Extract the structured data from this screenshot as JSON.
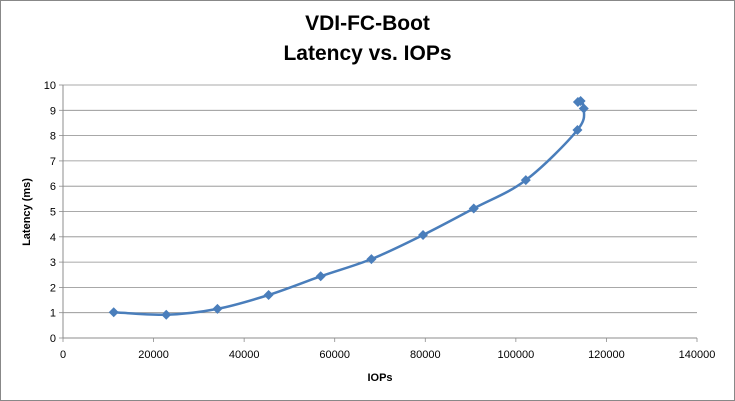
{
  "chart_data": {
    "type": "scatter",
    "title": "VDI-FC-Boot",
    "subtitle": "Latency vs. IOPs",
    "xlabel": "IOPs",
    "ylabel": "Latency (ms)",
    "xlim": [
      0,
      140000
    ],
    "ylim": [
      0,
      10
    ],
    "xticks": [
      0,
      20000,
      40000,
      60000,
      80000,
      100000,
      120000,
      140000
    ],
    "yticks": [
      0,
      1,
      2,
      3,
      4,
      5,
      6,
      7,
      8,
      9,
      10
    ],
    "grid": "horizontal",
    "smooth_line": true,
    "marker": "diamond",
    "color": "#4a7ebb",
    "series": [
      {
        "x": [
          11200,
          22800,
          34100,
          45400,
          56900,
          68100,
          79500,
          90700,
          102200,
          113600,
          115000,
          114300,
          113700
        ],
        "y": [
          1.02,
          0.92,
          1.15,
          1.7,
          2.44,
          3.12,
          4.07,
          5.12,
          6.24,
          8.22,
          9.07,
          9.37,
          9.33
        ]
      }
    ]
  }
}
